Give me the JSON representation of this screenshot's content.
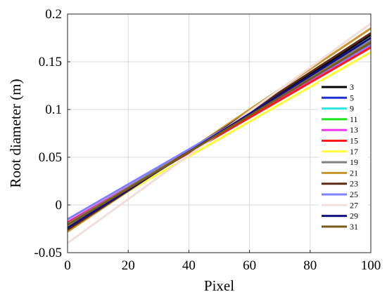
{
  "chart_data": {
    "type": "line",
    "xlabel": "Pixel",
    "ylabel": "Root diameter (m)",
    "xlim": [
      0,
      100
    ],
    "ylim": [
      -0.05,
      0.2
    ],
    "x_ticks": [
      "0",
      "20",
      "40",
      "60",
      "80",
      "100"
    ],
    "y_ticks": [
      "-0.05",
      "0",
      "0.05",
      "0.1",
      "0.15",
      "0.2"
    ],
    "grid": true,
    "legend_position": "right",
    "x": [
      0,
      100
    ],
    "series": [
      {
        "name": "3",
        "color": "#000000",
        "values": [
          -0.025,
          0.178
        ]
      },
      {
        "name": "5",
        "color": "#1f2fd1",
        "values": [
          -0.02,
          0.17
        ]
      },
      {
        "name": "9",
        "color": "#2ee6e6",
        "values": [
          -0.02,
          0.172
        ]
      },
      {
        "name": "11",
        "color": "#19e619",
        "values": [
          -0.02,
          0.17
        ]
      },
      {
        "name": "13",
        "color": "#f035f0",
        "values": [
          -0.018,
          0.166
        ]
      },
      {
        "name": "15",
        "color": "#ff1a1a",
        "values": [
          -0.019,
          0.165
        ]
      },
      {
        "name": "17",
        "color": "#ffff33",
        "values": [
          -0.022,
          0.16
        ]
      },
      {
        "name": "19",
        "color": "#808080",
        "values": [
          -0.02,
          0.172
        ]
      },
      {
        "name": "21",
        "color": "#c8952c",
        "values": [
          -0.028,
          0.185
        ]
      },
      {
        "name": "23",
        "color": "#5a2a14",
        "values": [
          -0.026,
          0.18
        ]
      },
      {
        "name": "25",
        "color": "#8080ff",
        "values": [
          -0.015,
          0.168
        ]
      },
      {
        "name": "27",
        "color": "#f3dede",
        "values": [
          -0.04,
          0.19
        ]
      },
      {
        "name": "29",
        "color": "#101080",
        "values": [
          -0.024,
          0.175
        ]
      },
      {
        "name": "31",
        "color": "#7a5a1a",
        "values": [
          -0.021,
          0.17
        ]
      }
    ]
  }
}
